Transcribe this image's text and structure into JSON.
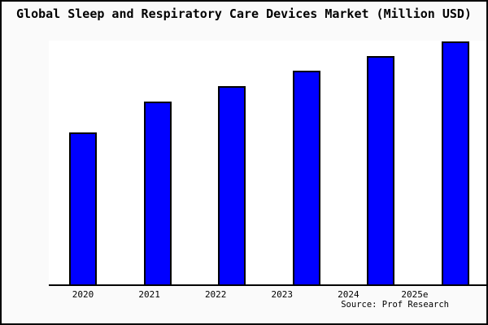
{
  "title": "Global Sleep and Respiratory Care Devices Market (Million USD)",
  "source": "Source: Prof Research",
  "colors": {
    "page_bg": "#fafafa",
    "plot_bg": "#ffffff",
    "bar_fill": "#0000ff",
    "bar_border": "#000000",
    "frame": "#000000",
    "text": "#000000"
  },
  "chart_data": {
    "type": "bar",
    "title": "Global Sleep and Respiratory Care Devices Market (Million USD)",
    "categories": [
      "2020",
      "2021",
      "2022",
      "2023",
      "2024",
      "2025e"
    ],
    "values": [
      62.5,
      75.3,
      81.6,
      88.0,
      94.0,
      100.0
    ],
    "values_note": "y-axis is unlabeled in the chart; values are relative bar heights as % of the 2025e bar",
    "xlabel": "",
    "ylabel": "",
    "ylim": [
      0,
      100.4
    ],
    "grid": false,
    "legend": false,
    "source": "Source: Prof Research"
  }
}
